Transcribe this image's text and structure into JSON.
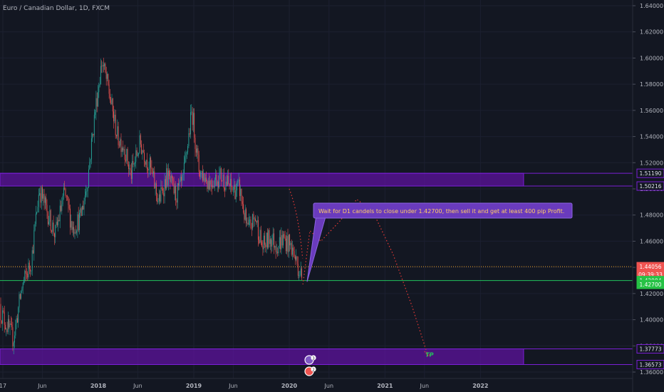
{
  "title": "Euro / Canadian Dollar, 1D, FXCM",
  "annotation": "Wait for D1 candels to close under 1.42700, then sell it and get at least 400 pip Profit.",
  "tp_label": "TP",
  "badges": [
    "3",
    "2"
  ],
  "colors": {
    "background": "#131722",
    "candle_up": "#26a69a",
    "candle_down": "#ef5350",
    "zone": "#7b1fd6",
    "zone_fill": "#5d139e",
    "note_bg": "#6a3bbd",
    "note_text": "#ffcc66",
    "green_line": "#22c55e",
    "orange_dotted": "#f5a623",
    "red_dotted": "#e53935"
  },
  "chart_data": {
    "type": "candlestick",
    "ylim": [
      1.357,
      1.646
    ],
    "x_ticks": [
      "17",
      "Jun",
      "2018",
      "Jun",
      "2019",
      "Jun",
      "2020",
      "Jun",
      "2021",
      "Jun",
      "2022"
    ],
    "x_tick_dates": [
      "2017-01-01",
      "2017-06-01",
      "2018-01-01",
      "2018-06-01",
      "2019-01-01",
      "2019-06-01",
      "2020-01-01",
      "2020-06-01",
      "2021-01-01",
      "2021-06-01",
      "2022-01-01"
    ],
    "y_ticks": [
      "1.64000",
      "1.62000",
      "1.60000",
      "1.58000",
      "1.56000",
      "1.54000",
      "1.52000",
      "1.50000",
      "1.48000",
      "1.46000",
      "1.44000",
      "1.42000",
      "1.40000",
      "1.38000",
      "1.36000"
    ],
    "price_labels": [
      {
        "text": "1.51190",
        "value": 1.5119,
        "style": "zone"
      },
      {
        "text": "1.50216",
        "value": 1.50216,
        "style": "zone"
      },
      {
        "text": "1.44056",
        "value": 1.44056,
        "style": "red"
      },
      {
        "text": "09:39:33",
        "value": 1.43466,
        "style": "red"
      },
      {
        "text": "1.42994",
        "value": 1.42994,
        "style": "green"
      },
      {
        "text": "1.42700",
        "value": 1.427,
        "style": "green"
      },
      {
        "text": "1.37773",
        "value": 1.37773,
        "style": "zone"
      },
      {
        "text": "1.36573",
        "value": 1.36573,
        "style": "zone"
      }
    ],
    "zones": [
      {
        "top": 1.5119,
        "bottom": 1.50216,
        "start": "2016-12-01",
        "end": "2022-06-15"
      },
      {
        "top": 1.37773,
        "bottom": 1.36573,
        "start": "2016-12-01",
        "end": "2022-06-15"
      }
    ],
    "levels": [
      {
        "value": 1.44056,
        "style": "orange-dotted"
      },
      {
        "value": 1.42994,
        "style": "green"
      }
    ],
    "waypoints": [
      {
        "date": "2016-12-10",
        "value": 1.412
      },
      {
        "date": "2017-02-10",
        "value": 1.385
      },
      {
        "date": "2017-03-15",
        "value": 1.425
      },
      {
        "date": "2017-04-20",
        "value": 1.445
      },
      {
        "date": "2017-05-20",
        "value": 1.5
      },
      {
        "date": "2017-06-10",
        "value": 1.488
      },
      {
        "date": "2017-07-20",
        "value": 1.465
      },
      {
        "date": "2017-08-25",
        "value": 1.497
      },
      {
        "date": "2017-09-25",
        "value": 1.47
      },
      {
        "date": "2017-10-25",
        "value": 1.478
      },
      {
        "date": "2017-11-20",
        "value": 1.505
      },
      {
        "date": "2017-12-20",
        "value": 1.56
      },
      {
        "date": "2018-01-15",
        "value": 1.598
      },
      {
        "date": "2018-02-10",
        "value": 1.575
      },
      {
        "date": "2018-02-28",
        "value": 1.555
      },
      {
        "date": "2018-03-15",
        "value": 1.54
      },
      {
        "date": "2018-04-10",
        "value": 1.532
      },
      {
        "date": "2018-05-05",
        "value": 1.51
      },
      {
        "date": "2018-06-10",
        "value": 1.535
      },
      {
        "date": "2018-07-20",
        "value": 1.515
      },
      {
        "date": "2018-08-20",
        "value": 1.49
      },
      {
        "date": "2018-09-20",
        "value": 1.51
      },
      {
        "date": "2018-10-25",
        "value": 1.495
      },
      {
        "date": "2018-11-20",
        "value": 1.505
      },
      {
        "date": "2018-12-25",
        "value": 1.56
      },
      {
        "date": "2019-01-20",
        "value": 1.515
      },
      {
        "date": "2019-03-01",
        "value": 1.505
      },
      {
        "date": "2019-04-15",
        "value": 1.51
      },
      {
        "date": "2019-05-25",
        "value": 1.5
      },
      {
        "date": "2019-06-25",
        "value": 1.5
      },
      {
        "date": "2019-07-25",
        "value": 1.468
      },
      {
        "date": "2019-08-25",
        "value": 1.478
      },
      {
        "date": "2019-09-20",
        "value": 1.455
      },
      {
        "date": "2019-10-20",
        "value": 1.463
      },
      {
        "date": "2019-11-15",
        "value": 1.457
      },
      {
        "date": "2019-12-10",
        "value": 1.462
      },
      {
        "date": "2020-01-10",
        "value": 1.455
      },
      {
        "date": "2020-02-05",
        "value": 1.44
      },
      {
        "date": "2020-02-21",
        "value": 1.432
      }
    ],
    "projection": [
      {
        "date": "2020-02-22",
        "value": 1.427
      },
      {
        "date": "2020-03-20",
        "value": 1.468
      },
      {
        "date": "2020-05-01",
        "value": 1.46
      },
      {
        "date": "2020-07-15",
        "value": 1.476
      },
      {
        "date": "2020-09-15",
        "value": 1.492
      },
      {
        "date": "2020-11-15",
        "value": 1.483
      },
      {
        "date": "2021-02-01",
        "value": 1.45
      },
      {
        "date": "2021-04-15",
        "value": 1.41
      },
      {
        "date": "2021-06-15",
        "value": 1.372
      }
    ]
  }
}
